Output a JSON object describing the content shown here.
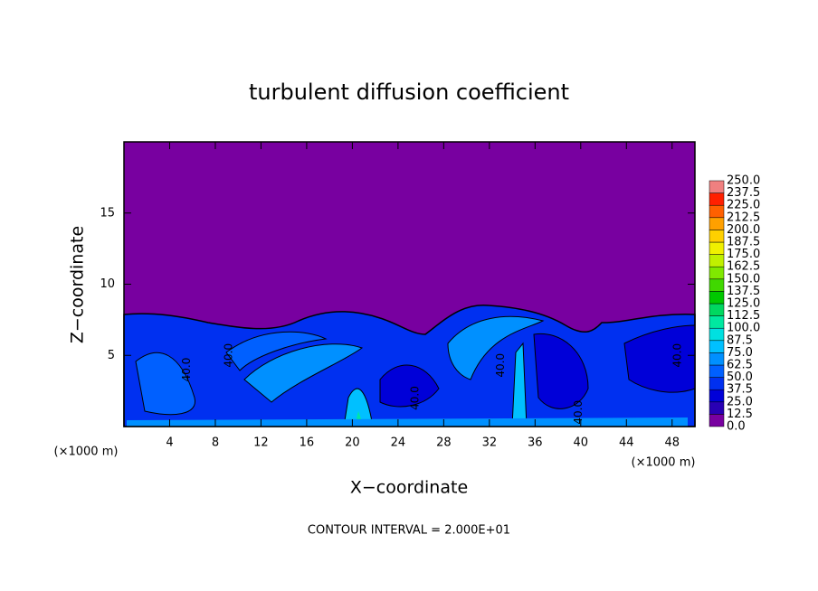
{
  "chart_data": {
    "type": "contour",
    "title": "turbulent diffusion coefficient",
    "x_label": "X−coordinate",
    "y_label": "Z−coordinate",
    "x_unit_label": "(×1000 m)",
    "y_unit_label": "(×1000 m)",
    "xlim": [
      0,
      50
    ],
    "ylim": [
      0,
      20
    ],
    "xticks": [
      4,
      8,
      12,
      16,
      20,
      24,
      28,
      32,
      36,
      40,
      44,
      48
    ],
    "yticks": [
      5,
      10,
      15
    ],
    "colorbar": {
      "levels": [
        {
          "value": 0,
          "label": "0.0"
        },
        {
          "value": 12.5,
          "label": "12.5"
        },
        {
          "value": 25,
          "label": "25.0"
        },
        {
          "value": 37.5,
          "label": "37.5"
        },
        {
          "value": 50,
          "label": "50.0"
        },
        {
          "value": 62.5,
          "label": "62.5"
        },
        {
          "value": 75,
          "label": "75.0"
        },
        {
          "value": 87.5,
          "label": "87.5"
        },
        {
          "value": 100,
          "label": "100.0"
        },
        {
          "value": 112.5,
          "label": "112.5"
        },
        {
          "value": 125,
          "label": "125.0"
        },
        {
          "value": 137.5,
          "label": "137.5"
        },
        {
          "value": 150,
          "label": "150.0"
        },
        {
          "value": 162.5,
          "label": "162.5"
        },
        {
          "value": 175,
          "label": "175.0"
        },
        {
          "value": 187.5,
          "label": "187.5"
        },
        {
          "value": 200,
          "label": "200.0"
        },
        {
          "value": 212.5,
          "label": "212.5"
        },
        {
          "value": 225,
          "label": "225.0"
        },
        {
          "value": 237.5,
          "label": "237.5"
        },
        {
          "value": 250,
          "label": "250.0"
        }
      ],
      "colors": [
        "#7800a0",
        "#2800b4",
        "#0000d8",
        "#0030f0",
        "#0060ff",
        "#0090ff",
        "#00c0ff",
        "#00e0e0",
        "#00e8a0",
        "#00d860",
        "#00c800",
        "#40d800",
        "#80e800",
        "#c0f000",
        "#f0f000",
        "#ffd000",
        "#ffa000",
        "#ff6000",
        "#ff2000",
        "#f08080"
      ]
    },
    "contour_labels": [
      {
        "x": 5.5,
        "z": 4,
        "value": 40,
        "label": "40.0"
      },
      {
        "x": 9.2,
        "z": 5,
        "value": 40,
        "label": "40.0"
      },
      {
        "x": 25.5,
        "z": 2,
        "value": 40,
        "label": "40.0"
      },
      {
        "x": 33,
        "z": 4.3,
        "value": 40,
        "label": "40.0"
      },
      {
        "x": 39.8,
        "z": 1,
        "value": 40,
        "label": "40.0"
      },
      {
        "x": 48.5,
        "z": 5,
        "value": 40,
        "label": "40.0"
      }
    ],
    "annotation": "CONTOUR INTERVAL = 2.000E+01"
  }
}
